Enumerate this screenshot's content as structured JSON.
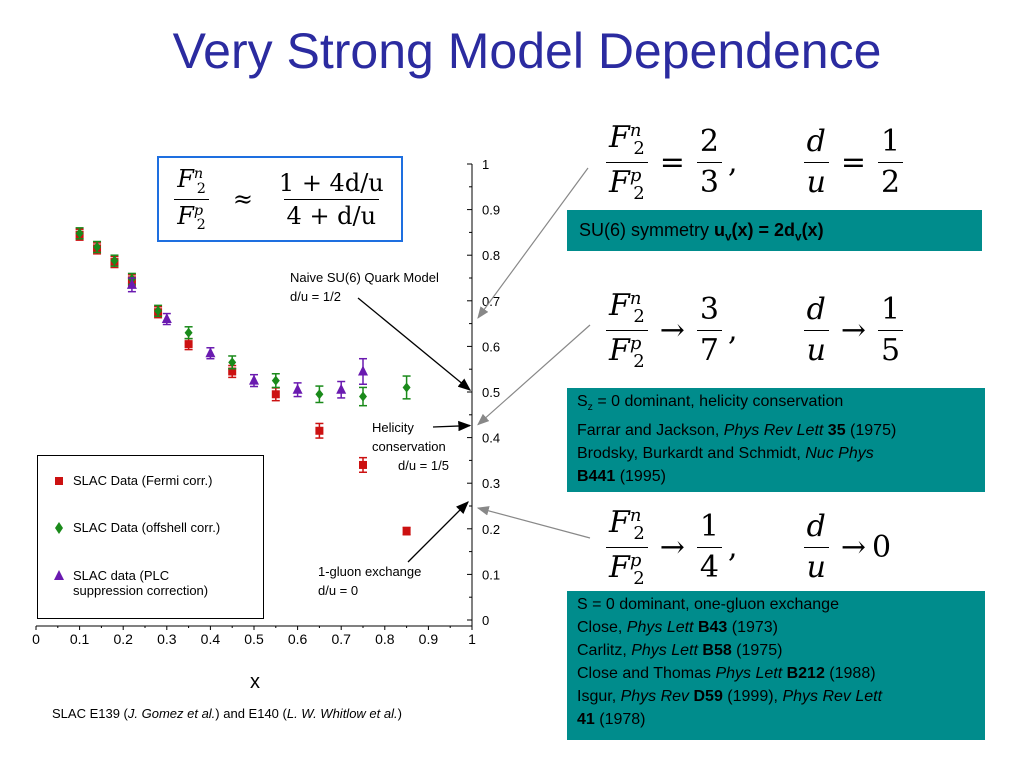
{
  "title": "Very Strong Model Dependence",
  "colors": {
    "title": "#2b2ba0",
    "fermi": "#cc1111",
    "offshell": "#1a8a1a",
    "plc": "#6a1ab0",
    "teal": "#008c8c",
    "formula_border": "#1e6fe0"
  },
  "formula_box": {
    "lhs_num": "F",
    "lhs_num_sub": "2",
    "lhs_num_sup": "n",
    "lhs_den": "F",
    "lhs_den_sub": "2",
    "lhs_den_sup": "p",
    "approx": "≈",
    "rhs_num": "1 + 4d/u",
    "rhs_den": "4 + d/u"
  },
  "chart_data": {
    "type": "scatter",
    "xlabel": "x",
    "ylabel": "",
    "xlim": [
      0,
      1
    ],
    "ylim": [
      0,
      1
    ],
    "x_ticks": [
      "0",
      "0.1",
      "0.2",
      "0.3",
      "0.4",
      "0.5",
      "0.6",
      "0.7",
      "0.8",
      "0.9",
      "1"
    ],
    "y_ticks": [
      "0",
      "0.1",
      "0.2",
      "0.3",
      "0.4",
      "0.5",
      "0.6",
      "0.7",
      "0.8",
      "0.9",
      "1"
    ],
    "x_tick_values": [
      0,
      0.1,
      0.2,
      0.3,
      0.4,
      0.5,
      0.6,
      0.7,
      0.8,
      0.9,
      1
    ],
    "y_tick_values": [
      0,
      0.1,
      0.2,
      0.3,
      0.4,
      0.5,
      0.6,
      0.7,
      0.8,
      0.9,
      1
    ],
    "y_axis_side": "right",
    "legend_position": "bottom-left",
    "series": [
      {
        "name": "SLAC Data (Fermi corr.)",
        "marker": "square",
        "color": "#cc1111",
        "points": [
          {
            "x": 0.1,
            "y": 0.845,
            "err": 0.012
          },
          {
            "x": 0.14,
            "y": 0.815,
            "err": 0.012
          },
          {
            "x": 0.18,
            "y": 0.785,
            "err": 0.012
          },
          {
            "x": 0.22,
            "y": 0.745,
            "err": 0.012
          },
          {
            "x": 0.28,
            "y": 0.675,
            "err": 0.012
          },
          {
            "x": 0.35,
            "y": 0.605,
            "err": 0.012
          },
          {
            "x": 0.45,
            "y": 0.545,
            "err": 0.013
          },
          {
            "x": 0.55,
            "y": 0.495,
            "err": 0.014
          },
          {
            "x": 0.65,
            "y": 0.415,
            "err": 0.016
          },
          {
            "x": 0.75,
            "y": 0.34,
            "err": 0.016
          },
          {
            "x": 0.85,
            "y": 0.195,
            "err": 0.008
          }
        ]
      },
      {
        "name": "SLAC Data (offshell corr.)",
        "marker": "diamond",
        "color": "#1a8a1a",
        "points": [
          {
            "x": 0.1,
            "y": 0.848,
            "err": 0.012
          },
          {
            "x": 0.14,
            "y": 0.818,
            "err": 0.012
          },
          {
            "x": 0.18,
            "y": 0.788,
            "err": 0.012
          },
          {
            "x": 0.22,
            "y": 0.748,
            "err": 0.012
          },
          {
            "x": 0.28,
            "y": 0.678,
            "err": 0.012
          },
          {
            "x": 0.35,
            "y": 0.63,
            "err": 0.013
          },
          {
            "x": 0.45,
            "y": 0.565,
            "err": 0.014
          },
          {
            "x": 0.55,
            "y": 0.525,
            "err": 0.015
          },
          {
            "x": 0.65,
            "y": 0.495,
            "err": 0.018
          },
          {
            "x": 0.75,
            "y": 0.49,
            "err": 0.02
          },
          {
            "x": 0.85,
            "y": 0.51,
            "err": 0.025
          }
        ]
      },
      {
        "name": "SLAC data (PLC suppression correction)",
        "marker": "triangle",
        "color": "#6a1ab0",
        "points": [
          {
            "x": 0.22,
            "y": 0.735,
            "err": 0.015
          },
          {
            "x": 0.3,
            "y": 0.66,
            "err": 0.012
          },
          {
            "x": 0.4,
            "y": 0.585,
            "err": 0.012
          },
          {
            "x": 0.5,
            "y": 0.525,
            "err": 0.013
          },
          {
            "x": 0.6,
            "y": 0.505,
            "err": 0.015
          },
          {
            "x": 0.7,
            "y": 0.505,
            "err": 0.018
          },
          {
            "x": 0.75,
            "y": 0.545,
            "err": 0.028
          }
        ]
      }
    ],
    "annotations": [
      {
        "lines": [
          "Naive SU(6) Quark Model",
          "d/u = 1/2"
        ]
      },
      {
        "lines": [
          "Helicity",
          "conservation",
          "d/u = 1/5"
        ]
      },
      {
        "lines": [
          "1-gluon exchange",
          "d/u = 0"
        ]
      }
    ]
  },
  "legend": [
    {
      "label": "SLAC Data (Fermi corr.)"
    },
    {
      "label": "SLAC Data (offshell corr.)"
    },
    {
      "label_line1": "SLAC data (PLC",
      "label_line2": "suppression correction)"
    }
  ],
  "citation": {
    "prefix": "SLAC E139 (",
    "author1": "J. Gomez et al.",
    "middle": ") and E140 (",
    "author2": "L. W. Whitlow et al.",
    "suffix": ")"
  },
  "equations": [
    {
      "ratio_op": "=",
      "ratio_num": "2",
      "ratio_den": "3",
      "du_op": "=",
      "du_num": "1",
      "du_den": "2"
    },
    {
      "ratio_op": "→",
      "ratio_num": "3",
      "ratio_den": "7",
      "du_op": "→",
      "du_num": "1",
      "du_den": "5"
    },
    {
      "ratio_op": "→",
      "ratio_num": "1",
      "ratio_den": "4",
      "du_op": "→",
      "du_value": "0"
    }
  ],
  "eq_common": {
    "F": "F",
    "two": "2",
    "n": "n",
    "p": "p",
    "d": "d",
    "u": "u",
    "comma": ","
  },
  "boxes": {
    "su6": {
      "text": "SU(6) symmetry ",
      "bold_u": "u",
      "bold_v1": "v",
      "bold_mid": "(x) = 2d",
      "bold_v2": "v",
      "bold_end": "(x)"
    },
    "helicity": {
      "l1_pre": "S",
      "l1_sub": "z",
      "l1_post": " = 0 dominant, helicity conservation",
      "l2_pre": "Farrar and Jackson, ",
      "l2_it": "Phys Rev Lett",
      "l2_b": " 35",
      "l2_post": " (1975)",
      "l3_pre": "Brodsky, Burkardt and Schmidt, ",
      "l3_it": "Nuc Phys",
      "l4_b": "B441",
      "l4_post": " (1995)"
    },
    "gluon": {
      "l1": "S = 0 dominant, one-gluon exchange",
      "l2_pre": "Close, ",
      "l2_it": "Phys Lett",
      "l2_b": " B43",
      "l2_post": " (1973)",
      "l3_pre": "Carlitz, ",
      "l3_it": "Phys Lett",
      "l3_b": " B58",
      "l3_post": " (1975)",
      "l4_pre": "Close and Thomas ",
      "l4_it": "Phys Lett",
      "l4_b": " B212",
      "l4_post": " (1988)",
      "l5_pre": "Isgur, ",
      "l5_it": "Phys Rev",
      "l5_b": " D59",
      "l5_mid": " (1999), ",
      "l5_it2": "Phys Rev Lett",
      "l6_b": "41",
      "l6_post": " (1978)"
    }
  }
}
